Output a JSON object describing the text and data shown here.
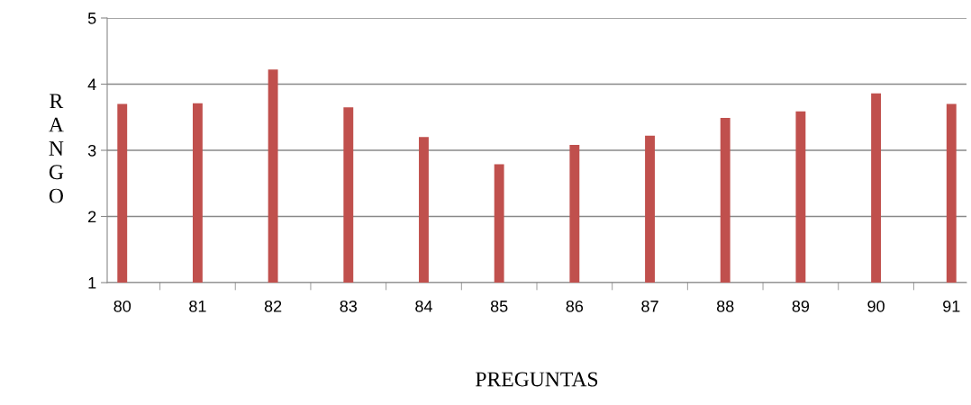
{
  "chart_data": {
    "type": "bar",
    "xlabel": "PREGUNTAS",
    "ylabel": "RANGO",
    "categories": [
      "80",
      "81",
      "82",
      "83",
      "84",
      "85",
      "86",
      "87",
      "88",
      "89",
      "90",
      "91"
    ],
    "values": [
      3.7,
      3.71,
      4.22,
      3.65,
      3.2,
      2.79,
      3.08,
      3.22,
      3.49,
      3.59,
      3.86,
      3.7
    ],
    "color": "#c0504d",
    "ylim": [
      1,
      5
    ],
    "yticks": [
      1,
      2,
      3,
      4,
      5
    ],
    "grid": "y"
  }
}
